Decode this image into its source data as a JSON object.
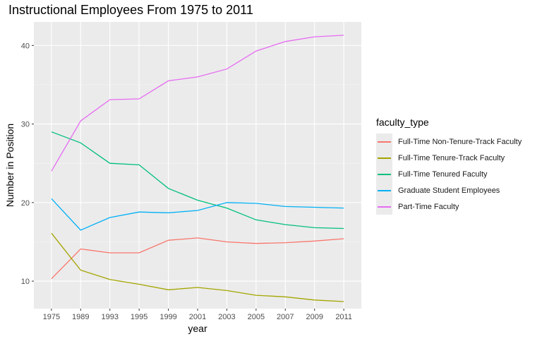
{
  "chart_data": {
    "type": "line",
    "title": "Instructional Employees From 1975 to 2011",
    "xlabel": "year",
    "ylabel": "Number in Position",
    "categories": [
      "1975",
      "1989",
      "1993",
      "1995",
      "1999",
      "2001",
      "2003",
      "2005",
      "2007",
      "2009",
      "2011"
    ],
    "y_ticks": [
      10,
      20,
      30,
      40
    ],
    "ylim": [
      6.5,
      43
    ],
    "grid": true,
    "legend_placement": "right",
    "legend_title": "faculty_type",
    "series": [
      {
        "name": "Full-Time Non-Tenure-Track Faculty",
        "color": "#F8766D",
        "values": [
          10.3,
          14.1,
          13.6,
          13.6,
          15.2,
          15.5,
          15.0,
          14.8,
          14.9,
          15.1,
          15.4
        ]
      },
      {
        "name": "Full-Time Tenure-Track Faculty",
        "color": "#A3A500",
        "values": [
          16.1,
          11.4,
          10.2,
          9.6,
          8.9,
          9.2,
          8.8,
          8.2,
          8.0,
          7.6,
          7.4
        ]
      },
      {
        "name": "Full-Time Tenured Faculty",
        "color": "#00BF7D",
        "values": [
          29.0,
          27.6,
          25.0,
          24.8,
          21.8,
          20.3,
          19.3,
          17.8,
          17.2,
          16.8,
          16.7
        ]
      },
      {
        "name": "Graduate Student Employees",
        "color": "#00B0F6",
        "values": [
          20.5,
          16.5,
          18.1,
          18.8,
          18.7,
          19.0,
          20.0,
          19.9,
          19.5,
          19.4,
          19.3
        ]
      },
      {
        "name": "Part-Time Faculty",
        "color": "#E76BF3",
        "values": [
          24.0,
          30.4,
          33.1,
          33.2,
          35.5,
          36.0,
          37.0,
          39.3,
          40.5,
          41.1,
          41.3
        ]
      }
    ]
  }
}
